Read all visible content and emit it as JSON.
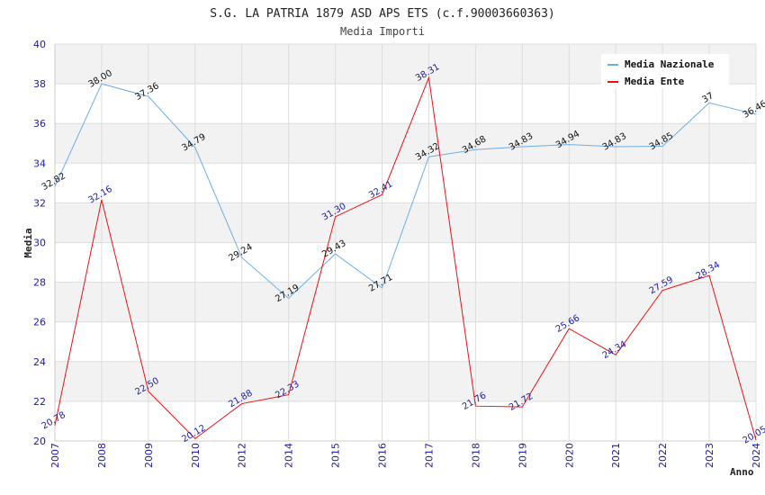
{
  "chart_data": {
    "type": "line",
    "title": "S.G. LA PATRIA 1879 ASD APS ETS (c.f.90003660363)",
    "subtitle": "Media Importi",
    "xlabel": "Anno",
    "ylabel": "Media",
    "ylim": [
      20,
      40
    ],
    "yticks": [
      "20",
      "22",
      "24",
      "26",
      "28",
      "30",
      "32",
      "34",
      "36",
      "38",
      "40"
    ],
    "categories": [
      "2007",
      "2008",
      "2009",
      "2010",
      "2012",
      "2014",
      "2015",
      "2016",
      "2017",
      "2018",
      "2019",
      "2020",
      "2021",
      "2022",
      "2023",
      "2024"
    ],
    "series": [
      {
        "name": "Media Nazionale",
        "color": "#6aaee8",
        "label_color": "#111111",
        "values": [
          32.82,
          38.0,
          37.36,
          34.79,
          29.24,
          27.19,
          29.43,
          27.71,
          34.32,
          34.68,
          34.83,
          34.94,
          34.83,
          34.85,
          37.04,
          36.46
        ],
        "labels": [
          "32.82",
          "38.00",
          "37.36",
          "34.79",
          "29.24",
          "27.19",
          "29.43",
          "27.71",
          "34.32",
          "34.68",
          "34.83",
          "34.94",
          "34.83",
          "34.85",
          "37",
          "36.46"
        ]
      },
      {
        "name": "Media Ente",
        "color": "#ee1111",
        "label_color": "#1a1aa6",
        "values": [
          20.78,
          32.16,
          22.5,
          20.12,
          21.88,
          22.33,
          31.3,
          32.41,
          38.31,
          21.76,
          21.72,
          25.66,
          24.34,
          27.59,
          28.34,
          20.05
        ],
        "labels": [
          "20.78",
          "32.16",
          "22.50",
          "20.12",
          "21.88",
          "22.33",
          "31.30",
          "32.41",
          "38.31",
          "21.76",
          "21.72",
          "25.66",
          "24.34",
          "27.59",
          "28.34",
          "20.05"
        ]
      }
    ],
    "legend": {
      "position": "top-right"
    },
    "grid": true
  }
}
